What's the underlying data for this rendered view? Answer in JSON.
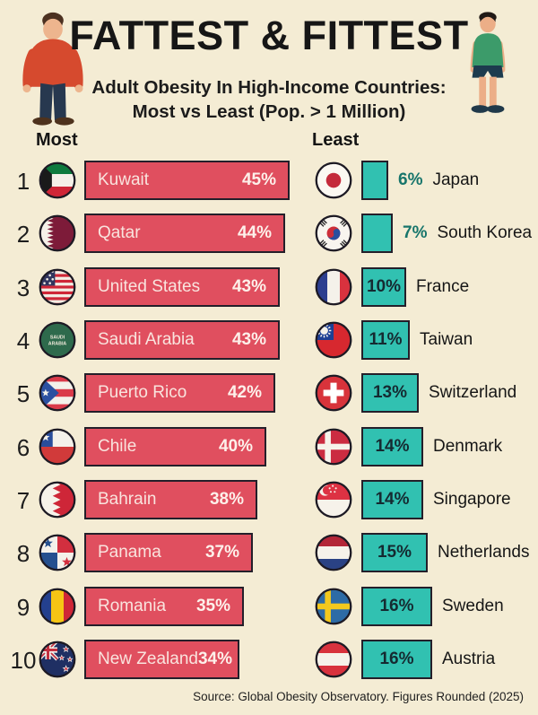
{
  "header": {
    "title": "FATTEST & FITTEST",
    "subtitle_line1": "Adult Obesity In High-Income Countries:",
    "subtitle_line2": "Most vs Least (Pop. > 1 Million)"
  },
  "column_labels": {
    "most": "Most",
    "least": "Least"
  },
  "footer_source": "Source: Global Obesity Observatory. Figures Rounded (2025)",
  "illustrations": {
    "left": "overweight-man-illustration",
    "right": "fit-man-illustration"
  },
  "colors": {
    "background": "#f4ecd4",
    "bar_most": "#e04f5f",
    "bar_least": "#31c1b1",
    "bar_border": "#241f2a",
    "text_on_red": "#f9e4de",
    "pct_on_teal": "#152a31",
    "pct_outside_teal": "#17756b",
    "text_dark": "#161616"
  },
  "chart_data": {
    "type": "bar",
    "orientation": "horizontal",
    "title": "FATTEST & FITTEST",
    "subtitle": "Adult Obesity In High-Income Countries: Most vs Least (Pop. > 1 Million)",
    "value_unit": "%",
    "value_range": [
      0,
      50
    ],
    "legend_position": "column-headers",
    "series": [
      {
        "name": "Most",
        "bar_color": "#e04f5f",
        "data": [
          {
            "rank": "1",
            "country": "Kuwait",
            "value": 45,
            "pct_label": "45%",
            "flag": "kuwait"
          },
          {
            "rank": "2",
            "country": "Qatar",
            "value": 44,
            "pct_label": "44%",
            "flag": "qatar"
          },
          {
            "rank": "3",
            "country": "United States",
            "value": 43,
            "pct_label": "43%",
            "flag": "usa"
          },
          {
            "rank": "4",
            "country": "Saudi Arabia",
            "value": 43,
            "pct_label": "43%",
            "flag": "saudi-arabia"
          },
          {
            "rank": "5",
            "country": "Puerto Rico",
            "value": 42,
            "pct_label": "42%",
            "flag": "puerto-rico"
          },
          {
            "rank": "6",
            "country": "Chile",
            "value": 40,
            "pct_label": "40%",
            "flag": "chile"
          },
          {
            "rank": "7",
            "country": "Bahrain",
            "value": 38,
            "pct_label": "38%",
            "flag": "bahrain"
          },
          {
            "rank": "8",
            "country": "Panama",
            "value": 37,
            "pct_label": "37%",
            "flag": "panama"
          },
          {
            "rank": "9",
            "country": "Romania",
            "value": 35,
            "pct_label": "35%",
            "flag": "romania"
          },
          {
            "rank": "10",
            "country": "New Zealand",
            "value": 34,
            "pct_label": "34%",
            "flag": "new-zealand"
          }
        ]
      },
      {
        "name": "Least",
        "bar_color": "#31c1b1",
        "data": [
          {
            "country": "Japan",
            "value": 6,
            "pct_label": "6%",
            "flag": "japan"
          },
          {
            "country": "South Korea",
            "value": 7,
            "pct_label": "7%",
            "flag": "south-korea"
          },
          {
            "country": "France",
            "value": 10,
            "pct_label": "10%",
            "flag": "france"
          },
          {
            "country": "Taiwan",
            "value": 11,
            "pct_label": "11%",
            "flag": "taiwan"
          },
          {
            "country": "Switzerland",
            "value": 13,
            "pct_label": "13%",
            "flag": "switzerland"
          },
          {
            "country": "Denmark",
            "value": 14,
            "pct_label": "14%",
            "flag": "denmark"
          },
          {
            "country": "Singapore",
            "value": 14,
            "pct_label": "14%",
            "flag": "singapore"
          },
          {
            "country": "Netherlands",
            "value": 15,
            "pct_label": "15%",
            "flag": "netherlands"
          },
          {
            "country": "Sweden",
            "value": 16,
            "pct_label": "16%",
            "flag": "sweden"
          },
          {
            "country": "Austria",
            "value": 16,
            "pct_label": "16%",
            "flag": "austria"
          }
        ]
      }
    ]
  },
  "saudi_flag_text": {
    "line1": "SAUDI",
    "line2": "ARABIA"
  }
}
